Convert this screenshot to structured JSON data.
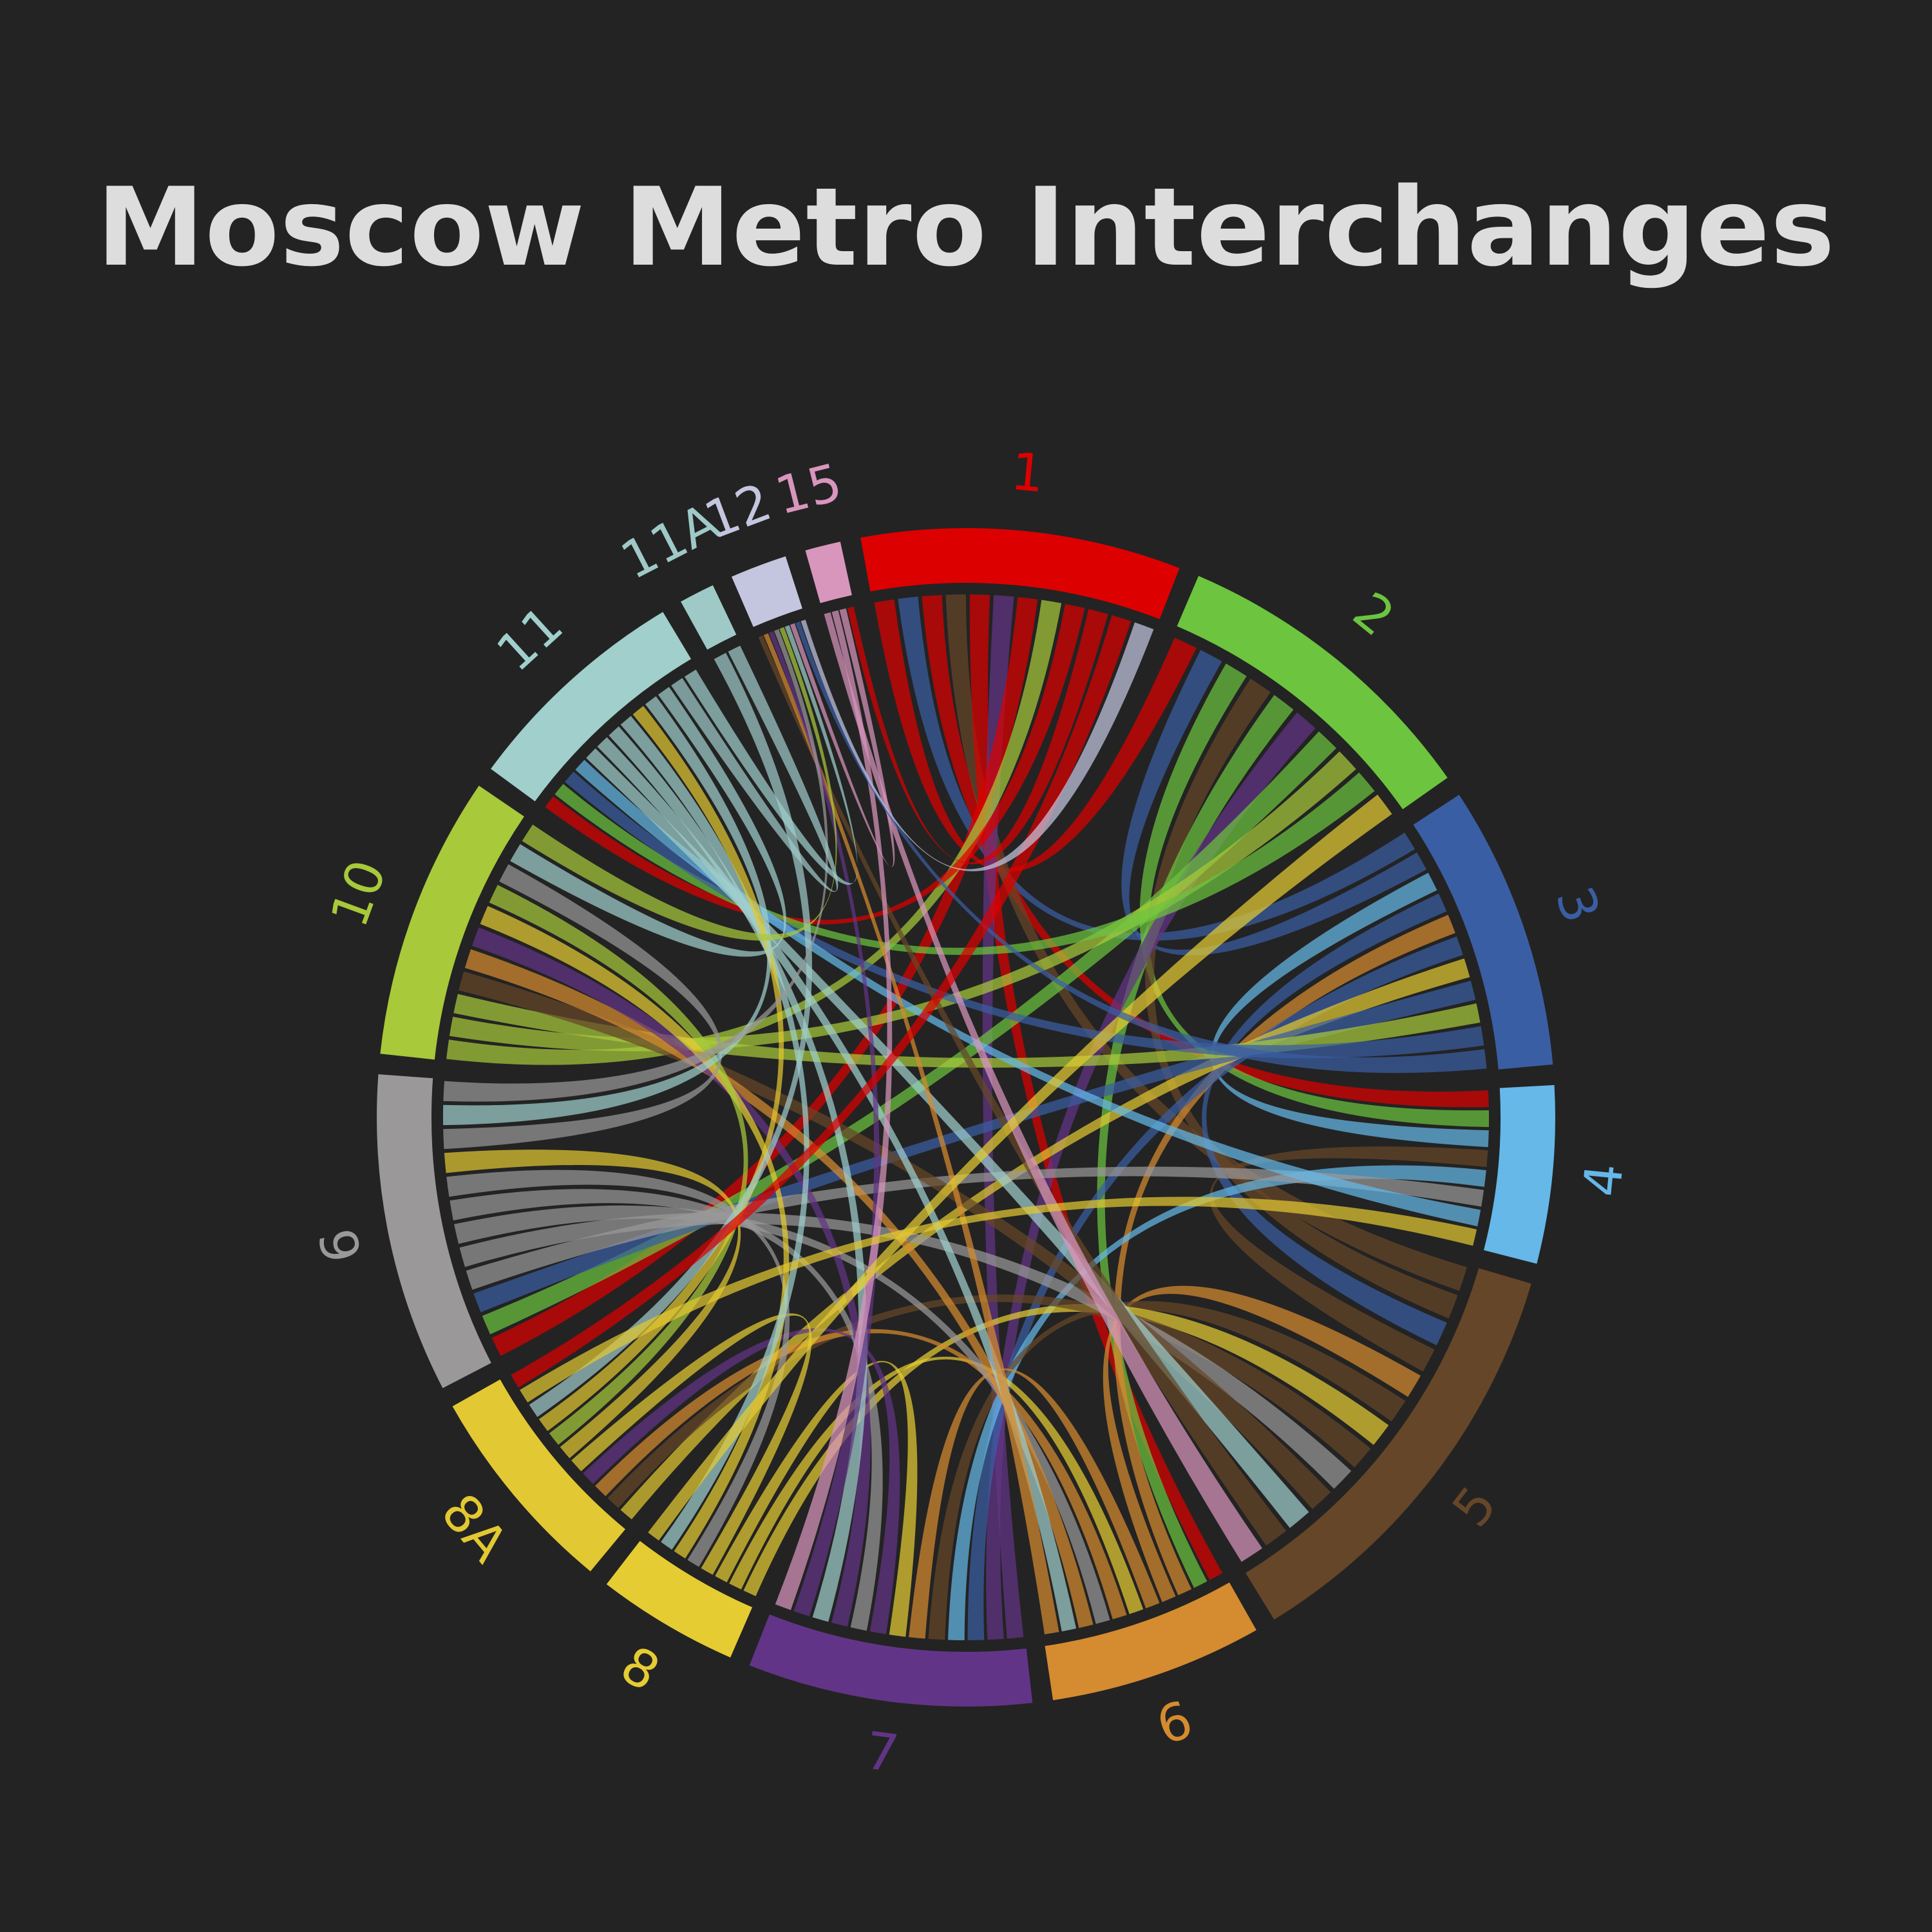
{
  "chart_data": {
    "type": "chord",
    "title": "Moscow Metro Interchanges",
    "segments": [
      {
        "id": "1",
        "label": "1",
        "color": "#dd0000",
        "weight": 9
      },
      {
        "id": "2",
        "label": "2",
        "color": "#6cc43f",
        "weight": 9
      },
      {
        "id": "3",
        "label": "3",
        "color": "#3a5ea3",
        "weight": 8
      },
      {
        "id": "4",
        "label": "4",
        "color": "#65b8e8",
        "weight": 5
      },
      {
        "id": "5",
        "label": "5",
        "color": "#664628",
        "weight": 12
      },
      {
        "id": "6",
        "label": "6",
        "color": "#d58b2f",
        "weight": 6
      },
      {
        "id": "7",
        "label": "7",
        "color": "#623487",
        "weight": 8
      },
      {
        "id": "8",
        "label": "8",
        "color": "#e5cc33",
        "weight": 4
      },
      {
        "id": "8A",
        "label": "8A",
        "color": "#e2c832",
        "weight": 6
      },
      {
        "id": "9",
        "label": "9",
        "color": "#9a9899",
        "weight": 9
      },
      {
        "id": "10",
        "label": "10",
        "color": "#a8c93a",
        "weight": 8
      },
      {
        "id": "11",
        "label": "11",
        "color": "#a0cfcc",
        "weight": 6.5
      },
      {
        "id": "11A",
        "label": "11A",
        "color": "#9ec9c7",
        "weight": 1
      },
      {
        "id": "12",
        "label": "12",
        "color": "#c4c6e0",
        "weight": 1.6
      },
      {
        "id": "15",
        "label": "15",
        "color": "#d896bd",
        "weight": 1
      }
    ],
    "links": [
      [
        "1",
        "2"
      ],
      [
        "1",
        "3"
      ],
      [
        "1",
        "4"
      ],
      [
        "1",
        "5"
      ],
      [
        "1",
        "6"
      ],
      [
        "1",
        "7"
      ],
      [
        "1",
        "9"
      ],
      [
        "1",
        "10"
      ],
      [
        "1",
        "11"
      ],
      [
        "2",
        "3"
      ],
      [
        "2",
        "4"
      ],
      [
        "2",
        "5"
      ],
      [
        "2",
        "6"
      ],
      [
        "2",
        "7"
      ],
      [
        "2",
        "9"
      ],
      [
        "2",
        "10"
      ],
      [
        "2",
        "11"
      ],
      [
        "3",
        "4"
      ],
      [
        "3",
        "5"
      ],
      [
        "3",
        "6"
      ],
      [
        "3",
        "7"
      ],
      [
        "3",
        "8A"
      ],
      [
        "3",
        "9"
      ],
      [
        "3",
        "10"
      ],
      [
        "3",
        "11"
      ],
      [
        "4",
        "5"
      ],
      [
        "4",
        "7"
      ],
      [
        "4",
        "9"
      ],
      [
        "4",
        "11"
      ],
      [
        "5",
        "6"
      ],
      [
        "5",
        "7"
      ],
      [
        "5",
        "8"
      ],
      [
        "5",
        "8A"
      ],
      [
        "5",
        "9"
      ],
      [
        "5",
        "10"
      ],
      [
        "5",
        "11"
      ],
      [
        "5",
        "12"
      ],
      [
        "5",
        "15"
      ],
      [
        "6",
        "7"
      ],
      [
        "6",
        "8"
      ],
      [
        "6",
        "8A"
      ],
      [
        "6",
        "9"
      ],
      [
        "6",
        "10"
      ],
      [
        "6",
        "11"
      ],
      [
        "6",
        "12"
      ],
      [
        "7",
        "8"
      ],
      [
        "7",
        "8A"
      ],
      [
        "7",
        "9"
      ],
      [
        "7",
        "10"
      ],
      [
        "7",
        "11"
      ],
      [
        "7",
        "12"
      ],
      [
        "7",
        "15"
      ],
      [
        "8",
        "8A"
      ],
      [
        "8",
        "9"
      ],
      [
        "8",
        "10"
      ],
      [
        "8",
        "11"
      ],
      [
        "8A",
        "9"
      ],
      [
        "8A",
        "10"
      ],
      [
        "8A",
        "11"
      ],
      [
        "8A",
        "11A"
      ],
      [
        "9",
        "10"
      ],
      [
        "9",
        "11"
      ],
      [
        "9",
        "12"
      ],
      [
        "10",
        "11"
      ],
      [
        "10",
        "12"
      ],
      [
        "11",
        "11A"
      ],
      [
        "11",
        "12"
      ],
      [
        "12",
        "15"
      ],
      [
        "1",
        "15"
      ],
      [
        "2",
        "8"
      ],
      [
        "3",
        "12"
      ],
      [
        "4",
        "8A"
      ],
      [
        "1",
        "8A"
      ],
      [
        "1",
        "12"
      ]
    ]
  }
}
